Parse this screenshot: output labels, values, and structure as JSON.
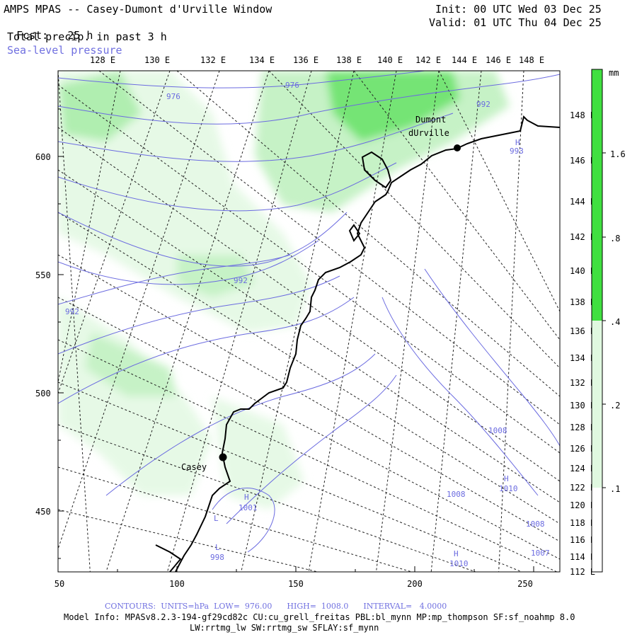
{
  "header": {
    "title": "AMPS MPAS -- Casey-Dumont d'Urville Window",
    "fcst_label": "Fcst:",
    "fcst_value": "25 h",
    "field1": "Total precip. in past 3 h",
    "field2": "Sea-level pressure",
    "init": "Init: 00 UTC Wed 03 Dec 25",
    "valid": "Valid: 01 UTC Thu 04 Dec 25"
  },
  "top_lon_labels": [
    "128 E",
    "130 E",
    "132 E",
    "134 E",
    "136 E",
    "138 E",
    "140 E",
    "142 E",
    "144 E",
    "146 E",
    "148 E"
  ],
  "right_lon_labels": [
    "148 E",
    "146 E",
    "144 E",
    "142 E",
    "140 E",
    "138 E",
    "136 E",
    "134 E",
    "132 E",
    "130 E",
    "128 E",
    "126 E",
    "124 E",
    "122 E",
    "120 E",
    "118 E",
    "116 E",
    "114 E",
    "112 E"
  ],
  "y_axis_labels": [
    "600",
    "550",
    "500",
    "450"
  ],
  "x_axis_labels": [
    "50",
    "100",
    "150",
    "200",
    "250"
  ],
  "stations": [
    {
      "name_line1": "Dumont",
      "name_line2": "dUrville"
    },
    {
      "name_line1": "Casey",
      "name_line2": ""
    }
  ],
  "contour_labels": [
    "976",
    "976",
    "992",
    "992",
    "992",
    "993",
    "1001",
    "998",
    "1008",
    "1010",
    "1008",
    "1008",
    "1007",
    "1010"
  ],
  "extrema_marks": [
    "H",
    "H",
    "L",
    "L",
    "H",
    "H"
  ],
  "colorbar": {
    "units": "mm",
    "ticks": [
      "1.6",
      ".8",
      ".4",
      ".2",
      ".1"
    ],
    "colors": [
      "#ffffff",
      "#e0f8e0",
      "#b8f0b8",
      "#78e878",
      "#40e040"
    ]
  },
  "footer": {
    "contours": "CONTOURS:  UNITS=hPa  LOW=  976.00      HIGH=  1008.0      INTERVAL=   4.0000",
    "model_info": "Model Info: MPASv8.2.3-194-gf29cd82c CU:cu_grell_freitas PBL:bl_mynn MP:mp_thompson SF:sf_noahmp 8.0",
    "model_info2": "LW:rrtmg_lw SW:rrtmg_sw SFLAY:sf_mynn"
  }
}
